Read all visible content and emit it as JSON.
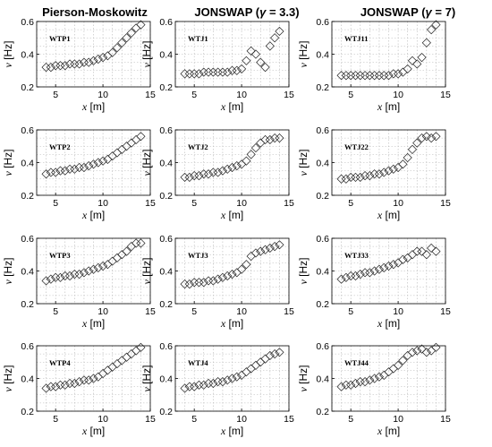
{
  "column_titles": [
    {
      "main": "Pierson-Moskowitz",
      "pre": "",
      "greek": "",
      "post": ""
    },
    {
      "main": "",
      "pre": "JONSWAP (",
      "greek": "γ",
      "post": " = 3.3)"
    },
    {
      "main": "",
      "pre": "JONSWAP (",
      "greek": "γ",
      "post": " = 7)"
    }
  ],
  "chart_data": {
    "type": "scatter",
    "marker": "diamond",
    "grid": true,
    "xlabel": "x [m]",
    "ylabel": "v [Hz]",
    "xlim": [
      3,
      15
    ],
    "ylim": [
      0.2,
      0.6
    ],
    "xticks": [
      5,
      10,
      15
    ],
    "yticks": [
      0.2,
      0.4,
      0.6
    ],
    "panels": [
      {
        "label": "WTP1",
        "x": [
          4,
          4.5,
          5,
          5.5,
          6,
          6.5,
          7,
          7.5,
          8,
          8.5,
          9,
          9.5,
          10,
          10.5,
          11,
          11.5,
          12,
          12.5,
          13,
          13.5,
          14
        ],
        "y": [
          0.32,
          0.32,
          0.33,
          0.33,
          0.33,
          0.34,
          0.34,
          0.34,
          0.35,
          0.35,
          0.36,
          0.37,
          0.38,
          0.39,
          0.41,
          0.44,
          0.47,
          0.5,
          0.53,
          0.56,
          0.58
        ]
      },
      {
        "label": "WTJ1",
        "x": [
          4,
          4.5,
          5,
          5.5,
          6,
          6.5,
          7,
          7.5,
          8,
          8.5,
          9,
          9.5,
          10,
          10.5,
          11,
          11.5,
          12,
          12.5,
          13,
          13.5,
          14
        ],
        "y": [
          0.28,
          0.28,
          0.28,
          0.28,
          0.29,
          0.29,
          0.29,
          0.29,
          0.29,
          0.29,
          0.3,
          0.3,
          0.31,
          0.36,
          0.42,
          0.4,
          0.35,
          0.32,
          0.45,
          0.5,
          0.54
        ]
      },
      {
        "label": "WTJ11",
        "x": [
          4,
          4.5,
          5,
          5.5,
          6,
          6.5,
          7,
          7.5,
          8,
          8.5,
          9,
          9.5,
          10,
          10.5,
          11,
          11.5,
          12,
          12.5,
          13,
          13.5,
          14
        ],
        "y": [
          0.27,
          0.27,
          0.27,
          0.27,
          0.27,
          0.27,
          0.27,
          0.27,
          0.27,
          0.27,
          0.27,
          0.28,
          0.28,
          0.29,
          0.31,
          0.36,
          0.34,
          0.38,
          0.47,
          0.55,
          0.58
        ]
      },
      {
        "label": "WTP2",
        "x": [
          4,
          4.5,
          5,
          5.5,
          6,
          6.5,
          7,
          7.5,
          8,
          8.5,
          9,
          9.5,
          10,
          10.5,
          11,
          11.5,
          12,
          12.5,
          13,
          13.5,
          14
        ],
        "y": [
          0.33,
          0.34,
          0.34,
          0.35,
          0.35,
          0.36,
          0.36,
          0.37,
          0.37,
          0.38,
          0.39,
          0.4,
          0.41,
          0.42,
          0.44,
          0.46,
          0.48,
          0.5,
          0.52,
          0.54,
          0.56
        ]
      },
      {
        "label": "WTJ2",
        "x": [
          4,
          4.5,
          5,
          5.5,
          6,
          6.5,
          7,
          7.5,
          8,
          8.5,
          9,
          9.5,
          10,
          10.5,
          11,
          11.5,
          12,
          12.5,
          13,
          13.5,
          14
        ],
        "y": [
          0.31,
          0.31,
          0.32,
          0.32,
          0.33,
          0.33,
          0.34,
          0.34,
          0.35,
          0.36,
          0.37,
          0.38,
          0.39,
          0.41,
          0.45,
          0.49,
          0.52,
          0.54,
          0.54,
          0.55,
          0.55
        ]
      },
      {
        "label": "WTJ22",
        "x": [
          4,
          4.5,
          5,
          5.5,
          6,
          6.5,
          7,
          7.5,
          8,
          8.5,
          9,
          9.5,
          10,
          10.5,
          11,
          11.5,
          12,
          12.5,
          13,
          13.5,
          14
        ],
        "y": [
          0.3,
          0.3,
          0.31,
          0.31,
          0.31,
          0.32,
          0.32,
          0.33,
          0.33,
          0.34,
          0.35,
          0.36,
          0.37,
          0.39,
          0.43,
          0.48,
          0.52,
          0.55,
          0.56,
          0.55,
          0.56
        ]
      },
      {
        "label": "WTP3",
        "x": [
          4,
          4.5,
          5,
          5.5,
          6,
          6.5,
          7,
          7.5,
          8,
          8.5,
          9,
          9.5,
          10,
          10.5,
          11,
          11.5,
          12,
          12.5,
          13,
          13.5,
          14
        ],
        "y": [
          0.34,
          0.35,
          0.36,
          0.36,
          0.37,
          0.37,
          0.38,
          0.38,
          0.39,
          0.4,
          0.41,
          0.42,
          0.43,
          0.44,
          0.46,
          0.48,
          0.5,
          0.52,
          0.55,
          0.57,
          0.57
        ]
      },
      {
        "label": "WTJ3",
        "x": [
          4,
          4.5,
          5,
          5.5,
          6,
          6.5,
          7,
          7.5,
          8,
          8.5,
          9,
          9.5,
          10,
          10.5,
          11,
          11.5,
          12,
          12.5,
          13,
          13.5,
          14
        ],
        "y": [
          0.32,
          0.32,
          0.33,
          0.33,
          0.33,
          0.34,
          0.34,
          0.35,
          0.36,
          0.37,
          0.38,
          0.39,
          0.41,
          0.44,
          0.49,
          0.51,
          0.52,
          0.53,
          0.54,
          0.55,
          0.56
        ]
      },
      {
        "label": "WTJ33",
        "x": [
          4,
          4.5,
          5,
          5.5,
          6,
          6.5,
          7,
          7.5,
          8,
          8.5,
          9,
          9.5,
          10,
          10.5,
          11,
          11.5,
          12,
          12.5,
          13,
          13.5,
          14
        ],
        "y": [
          0.35,
          0.36,
          0.37,
          0.37,
          0.38,
          0.39,
          0.39,
          0.4,
          0.41,
          0.42,
          0.43,
          0.44,
          0.45,
          0.47,
          0.48,
          0.5,
          0.52,
          0.52,
          0.5,
          0.54,
          0.52
        ]
      },
      {
        "label": "WTP4",
        "x": [
          4,
          4.5,
          5,
          5.5,
          6,
          6.5,
          7,
          7.5,
          8,
          8.5,
          9,
          9.5,
          10,
          10.5,
          11,
          11.5,
          12,
          12.5,
          13,
          13.5,
          14
        ],
        "y": [
          0.34,
          0.35,
          0.35,
          0.36,
          0.36,
          0.37,
          0.37,
          0.38,
          0.39,
          0.39,
          0.4,
          0.41,
          0.43,
          0.45,
          0.47,
          0.49,
          0.51,
          0.53,
          0.55,
          0.57,
          0.59
        ]
      },
      {
        "label": "WTJ4",
        "x": [
          4,
          4.5,
          5,
          5.5,
          6,
          6.5,
          7,
          7.5,
          8,
          8.5,
          9,
          9.5,
          10,
          10.5,
          11,
          11.5,
          12,
          12.5,
          13,
          13.5,
          14
        ],
        "y": [
          0.34,
          0.35,
          0.35,
          0.36,
          0.36,
          0.37,
          0.37,
          0.38,
          0.38,
          0.39,
          0.4,
          0.41,
          0.42,
          0.44,
          0.46,
          0.48,
          0.5,
          0.52,
          0.54,
          0.55,
          0.56
        ]
      },
      {
        "label": "WTJ44",
        "x": [
          4,
          4.5,
          5,
          5.5,
          6,
          6.5,
          7,
          7.5,
          8,
          8.5,
          9,
          9.5,
          10,
          10.5,
          11,
          11.5,
          12,
          12.5,
          13,
          13.5,
          14
        ],
        "y": [
          0.35,
          0.36,
          0.36,
          0.37,
          0.38,
          0.38,
          0.39,
          0.4,
          0.41,
          0.42,
          0.44,
          0.46,
          0.48,
          0.51,
          0.54,
          0.56,
          0.57,
          0.58,
          0.56,
          0.57,
          0.59
        ]
      }
    ]
  }
}
